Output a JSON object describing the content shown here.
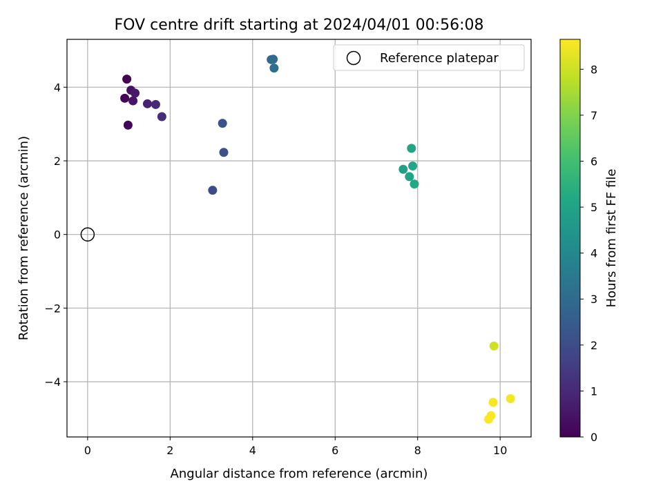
{
  "chart_data": {
    "type": "scatter",
    "title": "FOV centre drift starting at 2024/04/01 00:56:08",
    "xlabel": "Angular distance from reference (arcmin)",
    "ylabel": "Rotation from reference (arcmin)",
    "xlim": [
      -0.5,
      10.75
    ],
    "ylim": [
      -5.5,
      5.3
    ],
    "xticks": [
      0,
      2,
      4,
      6,
      8,
      10
    ],
    "xtick_labels": [
      "0",
      "2",
      "4",
      "6",
      "8",
      "10"
    ],
    "yticks": [
      -4,
      -2,
      0,
      2,
      4
    ],
    "ytick_labels": [
      "−4",
      "−2",
      "0",
      "2",
      "4"
    ],
    "grid": true,
    "legend": {
      "position": "top-right",
      "entries": [
        "Reference platepar"
      ]
    },
    "reference_point": {
      "x": 0,
      "y": 0,
      "label": "Reference platepar"
    },
    "colorbar": {
      "label": "Hours from first FF file",
      "colormap": "viridis",
      "range": [
        0,
        8.65
      ],
      "ticks": [
        0,
        1,
        2,
        3,
        4,
        5,
        6,
        7,
        8
      ],
      "tick_labels": [
        "0",
        "1",
        "2",
        "3",
        "4",
        "5",
        "6",
        "7",
        "8"
      ]
    },
    "points": [
      {
        "x": 0.95,
        "y": 4.22,
        "hours": 0.0
      },
      {
        "x": 0.9,
        "y": 3.7,
        "hours": 0.05
      },
      {
        "x": 0.98,
        "y": 2.97,
        "hours": 0.1
      },
      {
        "x": 1.05,
        "y": 3.92,
        "hours": 0.4
      },
      {
        "x": 1.1,
        "y": 3.63,
        "hours": 0.5
      },
      {
        "x": 1.15,
        "y": 3.84,
        "hours": 0.6
      },
      {
        "x": 1.45,
        "y": 3.55,
        "hours": 0.8
      },
      {
        "x": 1.65,
        "y": 3.53,
        "hours": 1.0
      },
      {
        "x": 1.8,
        "y": 3.2,
        "hours": 1.1
      },
      {
        "x": 3.03,
        "y": 1.2,
        "hours": 2.0
      },
      {
        "x": 3.27,
        "y": 3.02,
        "hours": 2.2
      },
      {
        "x": 3.3,
        "y": 2.23,
        "hours": 2.1
      },
      {
        "x": 4.45,
        "y": 4.75,
        "hours": 2.9
      },
      {
        "x": 4.5,
        "y": 4.76,
        "hours": 3.0
      },
      {
        "x": 4.52,
        "y": 4.52,
        "hours": 3.1
      },
      {
        "x": 7.65,
        "y": 1.77,
        "hours": 4.9
      },
      {
        "x": 7.8,
        "y": 1.57,
        "hours": 5.0
      },
      {
        "x": 7.85,
        "y": 2.34,
        "hours": 5.05
      },
      {
        "x": 7.88,
        "y": 1.86,
        "hours": 5.1
      },
      {
        "x": 7.92,
        "y": 1.37,
        "hours": 5.2
      },
      {
        "x": 9.85,
        "y": -3.03,
        "hours": 8.0
      },
      {
        "x": 10.25,
        "y": -4.46,
        "hours": 8.5
      },
      {
        "x": 9.83,
        "y": -4.56,
        "hours": 8.55
      },
      {
        "x": 9.78,
        "y": -4.92,
        "hours": 8.6
      },
      {
        "x": 9.72,
        "y": -5.02,
        "hours": 8.65
      }
    ]
  }
}
